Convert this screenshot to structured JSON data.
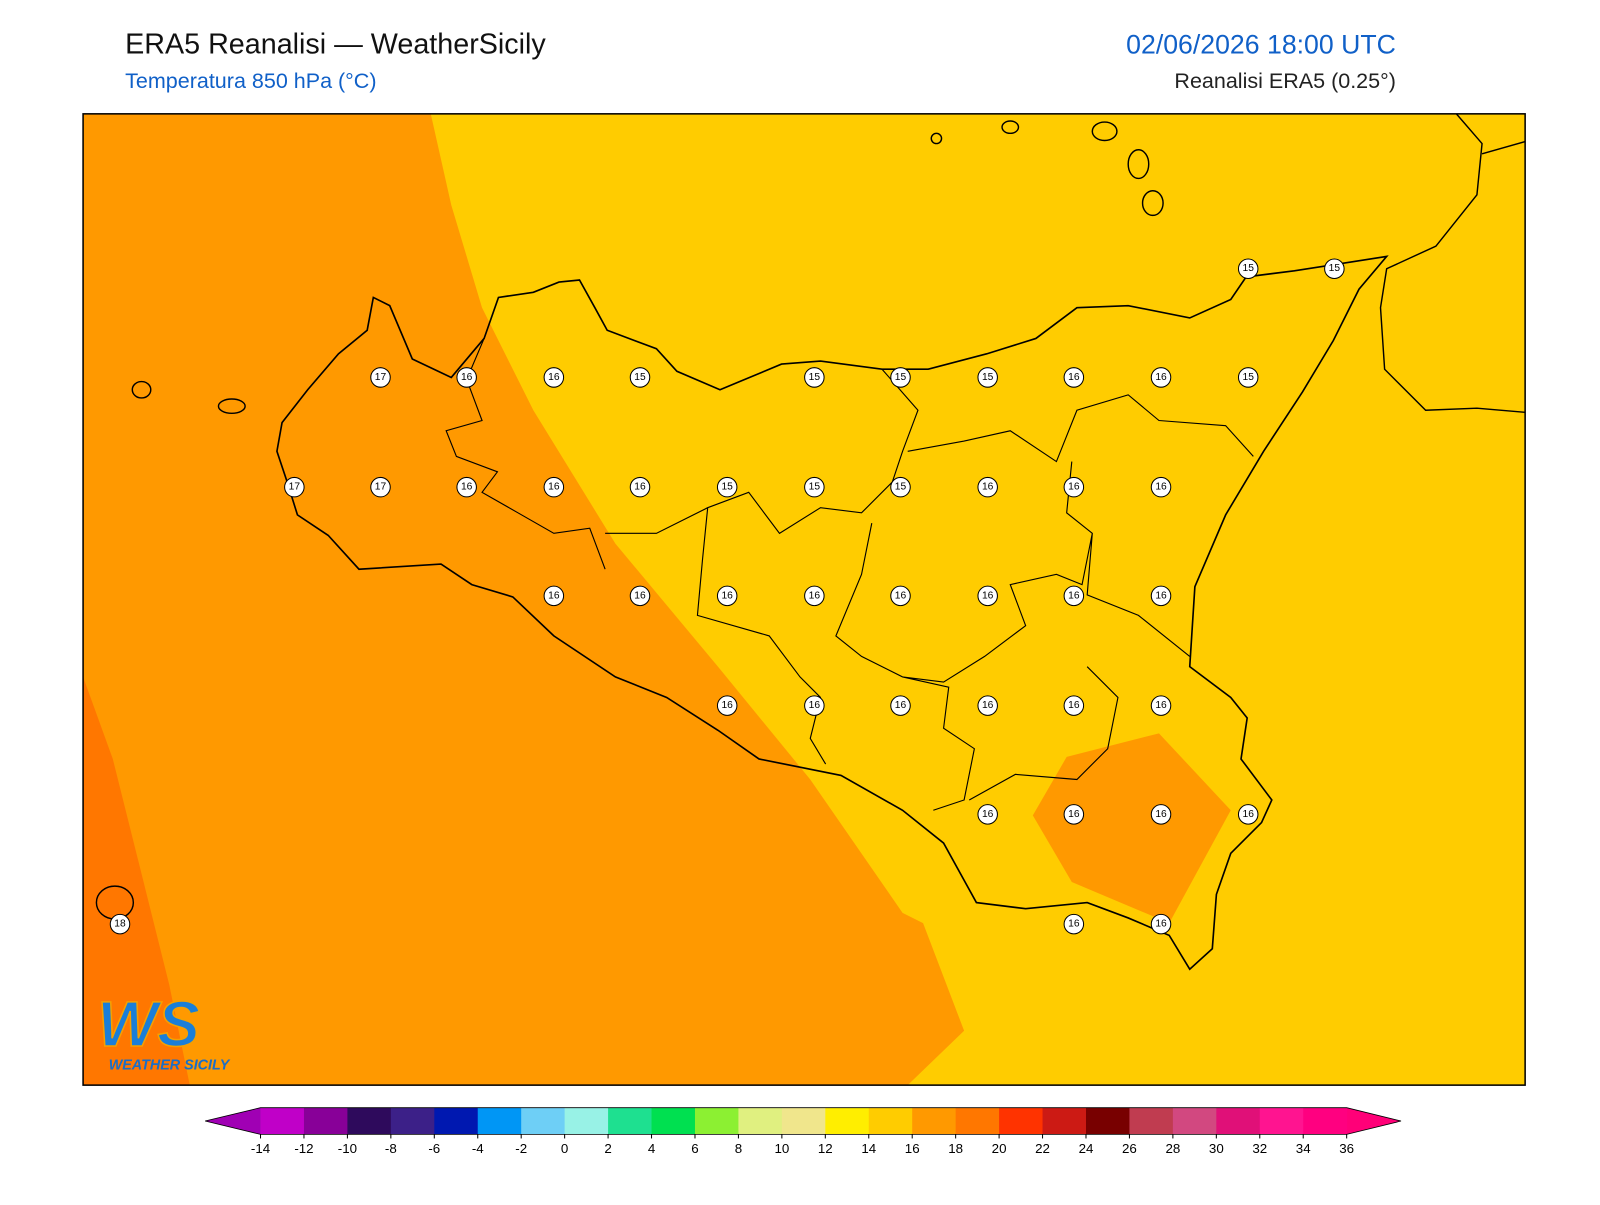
{
  "header": {
    "title": "ERA5 Reanalisi — WeatherSicily",
    "subtitle": "Temperatura 850 hPa (°C)",
    "datetime": "02/06/2026 18:00 UTC",
    "source": "Reanalisi ERA5 (0.25°)"
  },
  "logo": {
    "initials": "WS",
    "name": "WEATHER SICILY"
  },
  "labels": [
    15,
    15,
    17,
    16,
    16,
    15,
    15,
    15,
    15,
    16,
    16,
    15,
    17,
    17,
    16,
    16,
    16,
    15,
    15,
    15,
    16,
    16,
    16,
    16,
    16,
    16,
    16,
    16,
    16,
    16,
    16,
    16,
    16,
    16,
    16,
    16,
    16,
    16,
    16,
    16,
    16,
    18,
    16,
    16
  ],
  "colorbar": {
    "ticks": [
      -14,
      -12,
      -10,
      -8,
      -6,
      -4,
      -2,
      0,
      2,
      4,
      6,
      8,
      10,
      12,
      14,
      16,
      18,
      20,
      22,
      24,
      26,
      28,
      30,
      32,
      34,
      36
    ],
    "colors": [
      "#c000c8",
      "#880098",
      "#2e0a5c",
      "#3c2088",
      "#0018b0",
      "#0096f5",
      "#6ecff6",
      "#98f2e6",
      "#1ee090",
      "#00e050",
      "#8cf032",
      "#e0f080",
      "#f0e68c",
      "#ffee00",
      "#ffcc00",
      "#ff9900",
      "#ff7700",
      "#ff3300",
      "#cc1a14",
      "#780000",
      "#c03c50",
      "#d24880",
      "#e01078",
      "#ff1490",
      "#ff0080"
    ],
    "under_color": "#a000b4",
    "over_color": "#ff0078"
  }
}
